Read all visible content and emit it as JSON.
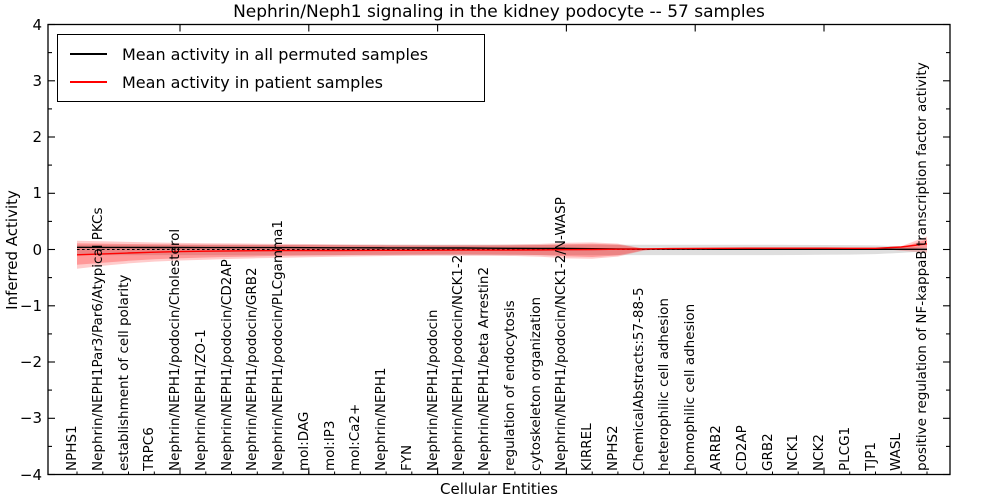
{
  "chart_data": {
    "type": "line",
    "title": "Nephrin/Neph1 signaling in the kidney podocyte -- 57 samples",
    "xlabel": "Cellular Entities",
    "ylabel": "Inferred Activity",
    "ylim": [
      -4,
      4
    ],
    "grid": false,
    "legend_position": "upper left",
    "ytick_labels": [
      "4",
      "3",
      "2",
      "1",
      "0",
      "−1",
      "−2",
      "−3",
      "−4"
    ],
    "ytick_values": [
      4,
      3,
      2,
      1,
      0,
      -1,
      -2,
      -3,
      -4
    ],
    "categories": [
      "NPHS1",
      "Nephrin/NEPH1Par3/Par6/Atypical PKCs",
      "establishment of cell polarity",
      "TRPC6",
      "Nephrin/NEPH1/podocin/Cholesterol",
      "Nephrin/NEPH1/ZO-1",
      "Nephrin/NEPH1/podocin/CD2AP",
      "Nephrin/NEPH1/podocin/GRB2",
      "Nephrin/NEPH1/podocin/PLCgamma1",
      "mol:DAG",
      "mol:IP3",
      "mol:Ca2+",
      "Nephrin/NEPH1",
      "FYN",
      "Nephrin/NEPH1/podocin",
      "Nephrin/NEPH1/podocin/NCK1-2",
      "Nephrin/NEPH1/beta Arrestin2",
      "regulation of endocytosis",
      "cytoskeleton organization",
      "Nephrin/NEPH1/podocin/NCK1-2/N-WASP",
      "KIRREL",
      "NPHS2",
      "ChemicalAbstracts:57-88-5",
      "heterophilic cell adhesion",
      "homophilic cell adhesion",
      "ARRB2",
      "CD2AP",
      "GRB2",
      "NCK1",
      "NCK2",
      "PLCG1",
      "TJP1",
      "WASL",
      "positive regulation of NF-kappaB transcription factor activity"
    ],
    "series": [
      {
        "name": "Mean activity in all permuted samples",
        "color": "#000000",
        "values": [
          0.039,
          0.038,
          0.037,
          0.036,
          0.035,
          0.034,
          0.034,
          0.033,
          0.033,
          0.032,
          0.031,
          0.03,
          0.029,
          0.028,
          0.027,
          0.026,
          0.024,
          0.022,
          0.02,
          0.017,
          0.014,
          0.011,
          0.008,
          0.006,
          0.005,
          0.004,
          0.004,
          0.004,
          0.004,
          0.004,
          0.004,
          0.004,
          0.004,
          0.004
        ]
      },
      {
        "name": "Mean activity in patient samples",
        "color": "#ff0000",
        "values": [
          -0.094,
          -0.078,
          -0.062,
          -0.048,
          -0.037,
          -0.03,
          -0.025,
          -0.021,
          -0.02,
          -0.018,
          -0.018,
          -0.016,
          -0.014,
          -0.014,
          -0.012,
          -0.011,
          -0.011,
          -0.009,
          -0.007,
          -0.004,
          0.0,
          0.005,
          0.011,
          0.016,
          0.02,
          0.021,
          0.023,
          0.023,
          0.023,
          0.023,
          0.021,
          0.021,
          0.044,
          0.101
        ]
      }
    ],
    "bands": [
      {
        "name": "permuted samples std band",
        "color": "rgba(0,0,0,0.13)",
        "upper": [
          0.085,
          0.085,
          0.085,
          0.085,
          0.085,
          0.085,
          0.085,
          0.085,
          0.085,
          0.085,
          0.085,
          0.085,
          0.085,
          0.085,
          0.085,
          0.085,
          0.085,
          0.085,
          0.085,
          0.085,
          0.085,
          0.085,
          0.085,
          0.085,
          0.085,
          0.085,
          0.085,
          0.085,
          0.082,
          0.08,
          0.078,
          0.072,
          0.055,
          0.03
        ],
        "lower": [
          -0.1,
          -0.1,
          -0.1,
          -0.1,
          -0.1,
          -0.1,
          -0.1,
          -0.1,
          -0.1,
          -0.1,
          -0.1,
          -0.1,
          -0.1,
          -0.1,
          -0.1,
          -0.1,
          -0.1,
          -0.1,
          -0.1,
          -0.1,
          -0.1,
          -0.1,
          -0.1,
          -0.1,
          -0.1,
          -0.1,
          -0.1,
          -0.1,
          -0.097,
          -0.094,
          -0.09,
          -0.082,
          -0.06,
          -0.03
        ]
      },
      {
        "name": "patient samples std band (outer)",
        "color": "rgba(255,0,0,0.20)",
        "upper": [
          0.155,
          0.145,
          0.135,
          0.125,
          0.118,
          0.112,
          0.108,
          0.104,
          0.1,
          0.097,
          0.091,
          0.088,
          0.086,
          0.084,
          0.082,
          0.083,
          0.086,
          0.091,
          0.1,
          0.119,
          0.126,
          0.105,
          0.016,
          0.016,
          0.02,
          0.021,
          0.023,
          0.023,
          0.023,
          0.023,
          0.021,
          0.021,
          0.059,
          0.231
        ],
        "lower": [
          -0.343,
          -0.29,
          -0.248,
          -0.215,
          -0.196,
          -0.183,
          -0.168,
          -0.157,
          -0.147,
          -0.138,
          -0.13,
          -0.122,
          -0.116,
          -0.111,
          -0.108,
          -0.11,
          -0.112,
          -0.116,
          -0.13,
          -0.158,
          -0.165,
          -0.126,
          -0.02,
          0.016,
          0.02,
          0.021,
          0.023,
          0.023,
          0.023,
          0.023,
          0.021,
          0.021,
          -0.023,
          -0.055
        ]
      },
      {
        "name": "patient samples std band (inner)",
        "color": "rgba(255,0,0,0.25)",
        "upper": [
          0.112,
          0.105,
          0.098,
          0.093,
          0.089,
          0.087,
          0.084,
          0.082,
          0.08,
          0.078,
          0.075,
          0.072,
          0.07,
          0.068,
          0.066,
          0.067,
          0.07,
          0.073,
          0.08,
          0.094,
          0.101,
          0.087,
          0.014,
          0.016,
          0.02,
          0.021,
          0.023,
          0.023,
          0.023,
          0.023,
          0.021,
          0.021,
          0.036,
          0.178
        ],
        "lower": [
          -0.272,
          -0.235,
          -0.2,
          -0.172,
          -0.155,
          -0.142,
          -0.131,
          -0.122,
          -0.113,
          -0.107,
          -0.101,
          -0.096,
          -0.092,
          -0.089,
          -0.087,
          -0.088,
          -0.089,
          -0.091,
          -0.1,
          -0.119,
          -0.133,
          -0.105,
          -0.014,
          0.016,
          0.02,
          0.021,
          0.023,
          0.023,
          0.023,
          0.023,
          0.021,
          0.021,
          -0.005,
          0.034
        ]
      }
    ],
    "zero_line": {
      "value": 0,
      "style": "dashed",
      "color": "#000000"
    }
  }
}
